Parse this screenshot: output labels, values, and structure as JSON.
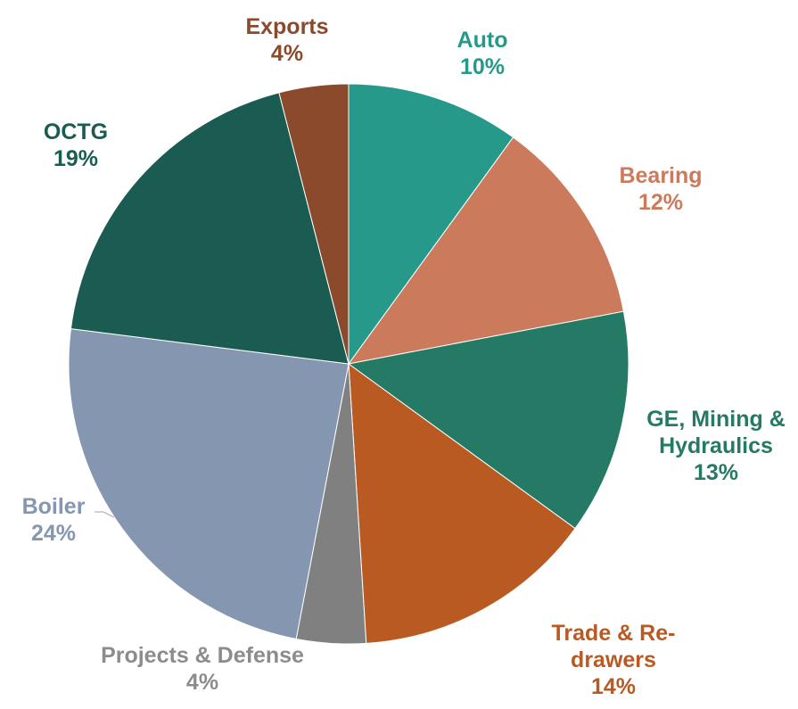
{
  "chart_data": {
    "type": "pie",
    "categories": [
      "Auto",
      "Bearing",
      "GE, Mining & Hydraulics",
      "Trade & Re-drawers",
      "Projects & Defense",
      "Boiler",
      "OCTG",
      "Exports"
    ],
    "values": [
      10,
      12,
      13,
      14,
      4,
      24,
      19,
      4
    ],
    "value_labels": [
      "10%",
      "12%",
      "13%",
      "14%",
      "4%",
      "24%",
      "19%",
      "4%"
    ],
    "colors": [
      "#26998a",
      "#cc7a5c",
      "#257a66",
      "#b85a22",
      "#808080",
      "#8496b0",
      "#1a5c52",
      "#8b4a2c"
    ],
    "label_colors": [
      "#26998a",
      "#cc7a5c",
      "#257a66",
      "#b85a22",
      "#8c8c8c",
      "#8496b0",
      "#1a5c52",
      "#8b4a2c"
    ]
  }
}
